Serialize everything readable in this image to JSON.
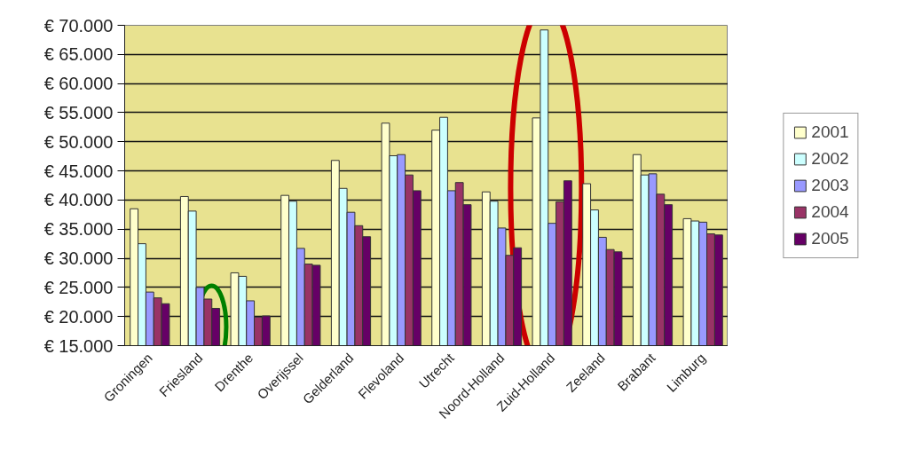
{
  "chart_data": {
    "type": "bar",
    "categories": [
      "Groningen",
      "Friesland",
      "Drenthe",
      "Overijssel",
      "Gelderland",
      "Flevoland",
      "Utrecht",
      "Noord-Holland",
      "Zuid-Holland",
      "Zeeland",
      "Brabant",
      "Limburg"
    ],
    "series": [
      {
        "name": "2001",
        "color": "#ffffcc",
        "values": [
          38500,
          40600,
          27500,
          40800,
          46800,
          53200,
          52000,
          41400,
          54100,
          42800,
          47800,
          36800
        ]
      },
      {
        "name": "2002",
        "color": "#ccffff",
        "values": [
          32500,
          38100,
          26900,
          39800,
          42000,
          47600,
          54200,
          39800,
          69200,
          38300,
          44300,
          36400
        ]
      },
      {
        "name": "2003",
        "color": "#9999ff",
        "values": [
          24200,
          25000,
          22700,
          31700,
          37900,
          47800,
          41600,
          35200,
          36000,
          33600,
          44500,
          36200
        ]
      },
      {
        "name": "2004",
        "color": "#993366",
        "values": [
          23200,
          23000,
          19900,
          29000,
          35600,
          44300,
          43000,
          30500,
          39700,
          31500,
          41000,
          34200
        ]
      },
      {
        "name": "2005",
        "color": "#660066",
        "values": [
          22200,
          21400,
          20100,
          28800,
          33700,
          41600,
          39200,
          31800,
          43300,
          31100,
          39200,
          34000
        ]
      }
    ],
    "ylim": [
      15000,
      70000
    ],
    "yticks": [
      {
        "value": 15000,
        "label": "€ 15.000"
      },
      {
        "value": 20000,
        "label": "€ 20.000"
      },
      {
        "value": 25000,
        "label": "€ 25.000"
      },
      {
        "value": 30000,
        "label": "€ 30.000"
      },
      {
        "value": 35000,
        "label": "€ 35.000"
      },
      {
        "value": 40000,
        "label": "€ 40.000"
      },
      {
        "value": 45000,
        "label": "€ 45.000"
      },
      {
        "value": 50000,
        "label": "€ 50.000"
      },
      {
        "value": 55000,
        "label": "€ 55.000"
      },
      {
        "value": 60000,
        "label": "€ 60.000"
      },
      {
        "value": 65000,
        "label": "€ 65.000"
      },
      {
        "value": 70000,
        "label": "€ 70.000"
      }
    ],
    "grid": "y",
    "legend": "right"
  }
}
